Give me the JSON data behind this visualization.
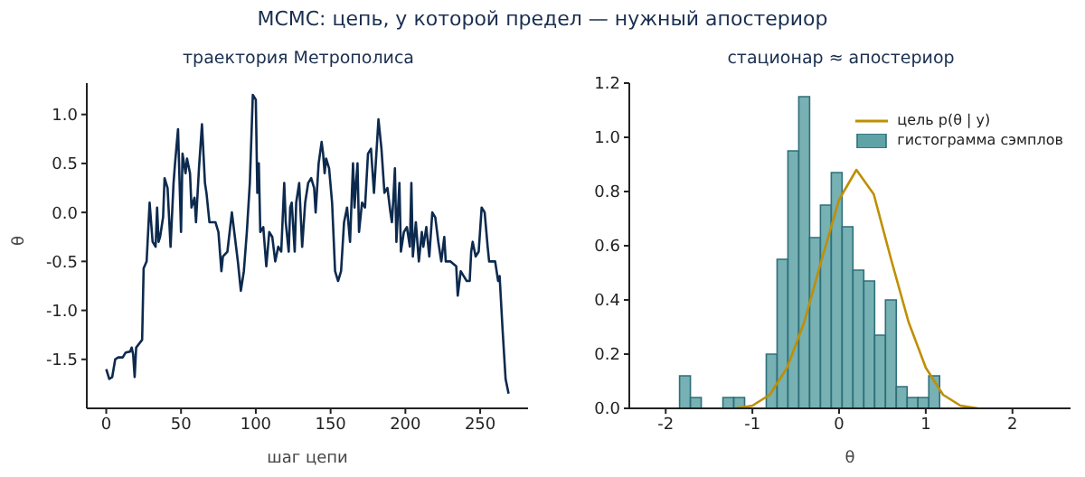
{
  "chart_data": [
    {
      "type": "line",
      "title": "траектория Метрополиса",
      "xlabel": "шаг цепи",
      "ylabel": "θ",
      "annotations": [
        "MCMC: цепь, у которой предел — нужный апостериор"
      ],
      "x": [
        0,
        2,
        4,
        6,
        8,
        11,
        13,
        16,
        17,
        18,
        19,
        20,
        24,
        25,
        27,
        29,
        31,
        33,
        34,
        35,
        36,
        38,
        39,
        41,
        43,
        45,
        46,
        48,
        50,
        51,
        53,
        54,
        56,
        57,
        59,
        60,
        62,
        64,
        66,
        67,
        69,
        73,
        75,
        77,
        78,
        81,
        84,
        86,
        88,
        90,
        92,
        94,
        96,
        98,
        100,
        101,
        102,
        103,
        105,
        107,
        109,
        111,
        113,
        115,
        117,
        119,
        120,
        122,
        123,
        124,
        126,
        127,
        129,
        131,
        133,
        135,
        137,
        139,
        140,
        142,
        144,
        145,
        146,
        147,
        149,
        151,
        153,
        155,
        157,
        159,
        161,
        163,
        165,
        166,
        167,
        168,
        169,
        171,
        173,
        175,
        177,
        179,
        180,
        182,
        184,
        186,
        188,
        190,
        191,
        192,
        193,
        194,
        196,
        197,
        199,
        201,
        203,
        204,
        205,
        207,
        209,
        211,
        212,
        214,
        216,
        218,
        220,
        222,
        224,
        226,
        227,
        230,
        234,
        235,
        237,
        239,
        241,
        243,
        244,
        245,
        247,
        249,
        251,
        253,
        255,
        256,
        258,
        260,
        262,
        263,
        265,
        267,
        269
      ],
      "series": [
        {
          "color": "#0d2a4e",
          "values": [
            -1.6,
            -1.7,
            -1.68,
            -1.5,
            -1.48,
            -1.48,
            -1.43,
            -1.42,
            -1.38,
            -1.45,
            -1.68,
            -1.38,
            -1.3,
            -0.57,
            -0.5,
            0.1,
            -0.3,
            -0.35,
            0.05,
            -0.3,
            -0.25,
            -0.05,
            0.35,
            0.25,
            -0.35,
            0.3,
            0.5,
            0.85,
            -0.2,
            0.6,
            0.4,
            0.55,
            0.4,
            0.05,
            0.15,
            -0.1,
            0.45,
            0.9,
            0.3,
            0.2,
            -0.1,
            -0.1,
            -0.2,
            -0.6,
            -0.45,
            -0.4,
            0,
            -0.25,
            -0.5,
            -0.8,
            -0.6,
            -0.2,
            0.3,
            1.2,
            1.15,
            0.2,
            0.5,
            -0.2,
            -0.15,
            -0.55,
            -0.2,
            -0.25,
            -0.5,
            -0.35,
            -0.4,
            0.3,
            -0.1,
            -0.4,
            0.05,
            0.1,
            -0.4,
            0.1,
            0.3,
            -0.35,
            0.1,
            0.3,
            0.35,
            0.25,
            0,
            0.5,
            0.72,
            0.6,
            0.4,
            0.55,
            0.45,
            0.1,
            -0.6,
            -0.7,
            -0.6,
            -0.1,
            0.05,
            -0.3,
            0.5,
            0.05,
            0.3,
            0.5,
            -0.2,
            0.1,
            0.05,
            0.6,
            0.65,
            0.2,
            0.45,
            0.95,
            0.65,
            0.2,
            0.25,
            0,
            -0.1,
            0.15,
            0.45,
            -0.3,
            0.3,
            -0.4,
            -0.2,
            -0.15,
            -0.35,
            0.3,
            -0.45,
            -0.1,
            -0.5,
            -0.2,
            -0.35,
            -0.15,
            -0.45,
            0,
            -0.05,
            -0.3,
            -0.5,
            -0.25,
            -0.5,
            -0.5,
            -0.55,
            -0.85,
            -0.6,
            -0.65,
            -0.7,
            -0.7,
            -0.4,
            -0.3,
            -0.45,
            -0.4,
            0.05,
            0,
            -0.35,
            -0.5,
            -0.5,
            -0.5,
            -0.7,
            -0.65,
            -1.2,
            -1.7,
            -1.85
          ]
        }
      ],
      "xlim": [
        -13,
        282
      ],
      "xticks": [
        0,
        50,
        100,
        150,
        200,
        250
      ],
      "ylim": [
        -2,
        1.32
      ],
      "yticks": [
        {
          "value": -1.5,
          "label": "-1.5"
        },
        {
          "value": -1,
          "label": "-1.0"
        },
        {
          "value": -0.5,
          "label": "-0.5"
        },
        {
          "value": 0,
          "label": "0.0"
        },
        {
          "value": 0.5,
          "label": "0.5"
        },
        {
          "value": 1,
          "label": "1.0"
        }
      ],
      "grid": false,
      "legend": false,
      "marker": "none",
      "line_style": "solid"
    },
    {
      "type": "histogram",
      "title": "стационар ≈ апостериор",
      "xlabel": "θ",
      "legend": "top right",
      "grid": false,
      "series": [
        {
          "type": "line",
          "name": "цель  p(θ | y)",
          "color": "#bf8f00",
          "x": [
            -1.2,
            -1,
            -0.8,
            -0.6,
            -0.4,
            -0.2,
            0,
            0.2,
            0.4,
            0.6,
            0.8,
            1,
            1.2,
            1.4,
            1.6
          ],
          "values": [
            0,
            0.01,
            0.05,
            0.15,
            0.32,
            0.55,
            0.77,
            0.88,
            0.79,
            0.55,
            0.32,
            0.15,
            0.05,
            0.01,
            0
          ]
        },
        {
          "name": "гистограмма сэмплов",
          "color": "#5fa3a6",
          "bins": [
            -1.84,
            -1.715,
            -1.59,
            -1.465,
            -1.34,
            -1.215,
            -1.09,
            -0.965,
            -0.84,
            -0.715,
            -0.59,
            -0.465,
            -0.34,
            -0.215,
            -0.09,
            0.035,
            0.16,
            0.285,
            0.41,
            0.535,
            0.66,
            0.785,
            0.91,
            1.035,
            1.16
          ],
          "values": [
            0.12,
            0.04,
            0,
            0,
            0.04,
            0.04,
            0,
            0,
            0.2,
            0.55,
            0.95,
            1.15,
            0.63,
            0.75,
            0.87,
            0.67,
            0.51,
            0.47,
            0.27,
            0.4,
            0.08,
            0.04,
            0.04,
            0.12
          ]
        }
      ],
      "xlim": [
        -2.42,
        2.67
      ],
      "xticks": [
        -2,
        -1,
        0,
        1,
        2
      ],
      "ylim": [
        0,
        1.2
      ],
      "yticks": [
        {
          "value": 0,
          "label": "0.0"
        },
        {
          "value": 0.2,
          "label": "0.2"
        },
        {
          "value": 0.4,
          "label": "0.4"
        },
        {
          "value": 0.6,
          "label": "0.6"
        },
        {
          "value": 0.8,
          "label": "0.8"
        },
        {
          "value": 1,
          "label": "1.0"
        },
        {
          "value": 1.2,
          "label": "1.2"
        }
      ]
    }
  ]
}
